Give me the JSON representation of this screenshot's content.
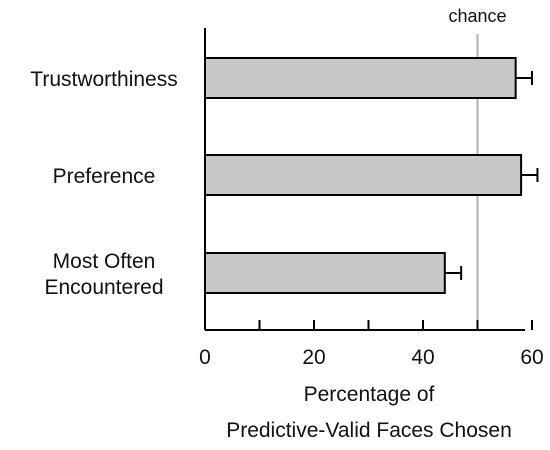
{
  "chart_data": {
    "type": "bar",
    "orientation": "horizontal",
    "categories": [
      [
        "Trustworthiness"
      ],
      [
        "Preference"
      ],
      [
        "Most Often",
        "Encountered"
      ]
    ],
    "values": [
      57,
      58,
      44
    ],
    "errors": [
      3,
      3,
      3
    ],
    "xlabel_lines": [
      "Percentage of",
      "Predictive-Valid Faces Chosen"
    ],
    "xlim": [
      0,
      60
    ],
    "xticks": [
      "0",
      "20",
      "40",
      "60"
    ],
    "reference_line": {
      "value": 50,
      "label": "chance"
    },
    "grid": false,
    "colors": {
      "bar_fill": "#c8c8c8",
      "bar_stroke": "#000000",
      "reference_line": "#b0b0b0"
    }
  }
}
